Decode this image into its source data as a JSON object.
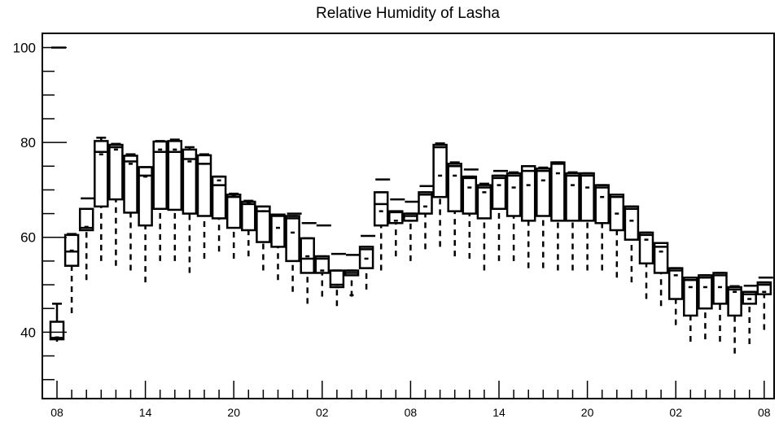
{
  "chart_data": {
    "type": "box",
    "title": "Relative Humidity of Lasha",
    "xlabel": "",
    "ylabel": "",
    "ylim": [
      26,
      103
    ],
    "y_ticks": [
      40,
      60,
      80,
      100
    ],
    "x_tick_labels": [
      "08",
      "14",
      "20",
      "02",
      "08",
      "14",
      "20",
      "02",
      "08"
    ],
    "x_tick_index": [
      0,
      6,
      12,
      18,
      24,
      30,
      36,
      42,
      48
    ],
    "grid": false,
    "boxes": [
      {
        "q1": 38.5,
        "q3": 42.2,
        "median": 38.8,
        "whisker_low": 38.0,
        "whisker_high": 46.0,
        "mean": 38.9,
        "outlier": 100.0
      },
      {
        "q1": 54.0,
        "q3": 60.5,
        "median": 57.0,
        "whisker_low": 44.0,
        "whisker_high": 60.7,
        "mean": 57.2,
        "outlier": null
      },
      {
        "q1": 61.5,
        "q3": 66.0,
        "median": 62.0,
        "whisker_low": 51.0,
        "whisker_high": 66.0,
        "mean": 62.2,
        "outlier": 68.2
      },
      {
        "q1": 66.5,
        "q3": 80.3,
        "median": 78.0,
        "whisker_low": 55.0,
        "whisker_high": 81.0,
        "mean": 77.5,
        "outlier": null
      },
      {
        "q1": 68.0,
        "q3": 79.5,
        "median": 79.0,
        "whisker_low": 54.0,
        "whisker_high": 79.7,
        "mean": 78.5,
        "outlier": null
      },
      {
        "q1": 65.2,
        "q3": 77.2,
        "median": 76.0,
        "whisker_low": 53.0,
        "whisker_high": 77.5,
        "mean": 75.5,
        "outlier": null
      },
      {
        "q1": 62.5,
        "q3": 74.8,
        "median": 73.0,
        "whisker_low": 50.5,
        "whisker_high": 74.8,
        "mean": 72.8,
        "outlier": null
      },
      {
        "q1": 66.0,
        "q3": 80.2,
        "median": 78.0,
        "whisker_low": 55.0,
        "whisker_high": 80.3,
        "mean": 78.5,
        "outlier": null
      },
      {
        "q1": 65.8,
        "q3": 80.3,
        "median": 78.0,
        "whisker_low": 55.0,
        "whisker_high": 80.6,
        "mean": 78.5,
        "outlier": null
      },
      {
        "q1": 65.0,
        "q3": 78.5,
        "median": 76.5,
        "whisker_low": 52.5,
        "whisker_high": 79.0,
        "mean": 76.0,
        "outlier": null
      },
      {
        "q1": 64.5,
        "q3": 77.3,
        "median": 75.5,
        "whisker_low": 55.5,
        "whisker_high": 77.5,
        "mean": 75.5,
        "outlier": null
      },
      {
        "q1": 64.0,
        "q3": 72.8,
        "median": 71.0,
        "whisker_low": 57.0,
        "whisker_high": 72.8,
        "mean": 72.0,
        "outlier": null
      },
      {
        "q1": 62.0,
        "q3": 69.0,
        "median": 68.5,
        "whisker_low": 55.5,
        "whisker_high": 69.2,
        "mean": 68.8,
        "outlier": null
      },
      {
        "q1": 61.5,
        "q3": 67.5,
        "median": 67.0,
        "whisker_low": 56.0,
        "whisker_high": 67.7,
        "mean": 67.2,
        "outlier": null
      },
      {
        "q1": 59.0,
        "q3": 66.5,
        "median": 65.5,
        "whisker_low": 53.0,
        "whisker_high": 66.5,
        "mean": 65.5,
        "outlier": null
      },
      {
        "q1": 58.0,
        "q3": 64.8,
        "median": 64.5,
        "whisker_low": 51.0,
        "whisker_high": 64.8,
        "mean": 62.0,
        "outlier": null
      },
      {
        "q1": 55.0,
        "q3": 64.5,
        "median": 64.0,
        "whisker_low": 48.5,
        "whisker_high": 64.5,
        "mean": 61.0,
        "outlier": 65.0
      },
      {
        "q1": 52.5,
        "q3": 59.8,
        "median": 55.5,
        "whisker_low": 46.0,
        "whisker_high": 59.8,
        "mean": 56.0,
        "outlier": 63.0
      },
      {
        "q1": 52.5,
        "q3": 56.0,
        "median": 55.5,
        "whisker_low": 47.5,
        "whisker_high": 56.0,
        "mean": 53.0,
        "outlier": 62.5
      },
      {
        "q1": 49.5,
        "q3": 53.0,
        "median": 50.0,
        "whisker_low": 45.5,
        "whisker_high": 53.0,
        "mean": 49.5,
        "outlier": 56.5
      },
      {
        "q1": 52.0,
        "q3": 53.0,
        "median": 52.5,
        "whisker_low": 47.5,
        "whisker_high": 53.0,
        "mean": 47.8,
        "outlier": 56.3
      },
      {
        "q1": 53.5,
        "q3": 58.0,
        "median": 57.5,
        "whisker_low": 49.0,
        "whisker_high": 58.0,
        "mean": 55.5,
        "outlier": 60.3
      },
      {
        "q1": 62.5,
        "q3": 69.5,
        "median": 67.0,
        "whisker_low": 53.0,
        "whisker_high": 69.5,
        "mean": 65.5,
        "outlier": 72.2
      },
      {
        "q1": 63.0,
        "q3": 65.5,
        "median": 65.3,
        "whisker_low": 56.0,
        "whisker_high": 65.5,
        "mean": 63.5,
        "outlier": 68.0
      },
      {
        "q1": 63.5,
        "q3": 65.0,
        "median": 64.5,
        "whisker_low": 55.0,
        "whisker_high": 65.0,
        "mean": 63.5,
        "outlier": 67.5
      },
      {
        "q1": 65.0,
        "q3": 69.5,
        "median": 69.0,
        "whisker_low": 57.5,
        "whisker_high": 69.5,
        "mean": 66.5,
        "outlier": 70.8
      },
      {
        "q1": 68.5,
        "q3": 79.5,
        "median": 79.0,
        "whisker_low": 58.0,
        "whisker_high": 79.8,
        "mean": 73.0,
        "outlier": null
      },
      {
        "q1": 65.5,
        "q3": 75.5,
        "median": 75.0,
        "whisker_low": 56.0,
        "whisker_high": 75.8,
        "mean": 73.0,
        "outlier": null
      },
      {
        "q1": 65.0,
        "q3": 72.8,
        "median": 72.5,
        "whisker_low": 55.5,
        "whisker_high": 72.8,
        "mean": 70.5,
        "outlier": 74.3
      },
      {
        "q1": 64.0,
        "q3": 71.0,
        "median": 70.5,
        "whisker_low": 53.0,
        "whisker_high": 71.3,
        "mean": 69.5,
        "outlier": null
      },
      {
        "q1": 66.0,
        "q3": 73.0,
        "median": 72.5,
        "whisker_low": 55.0,
        "whisker_high": 73.0,
        "mean": 71.0,
        "outlier": 74.0
      },
      {
        "q1": 64.5,
        "q3": 73.5,
        "median": 73.0,
        "whisker_low": 55.0,
        "whisker_high": 73.7,
        "mean": 70.5,
        "outlier": null
      },
      {
        "q1": 63.5,
        "q3": 75.0,
        "median": 74.0,
        "whisker_low": 53.5,
        "whisker_high": 75.0,
        "mean": 71.0,
        "outlier": null
      },
      {
        "q1": 64.5,
        "q3": 74.5,
        "median": 74.0,
        "whisker_low": 53.5,
        "whisker_high": 74.7,
        "mean": 72.0,
        "outlier": null
      },
      {
        "q1": 63.5,
        "q3": 75.8,
        "median": 75.5,
        "whisker_low": 53.0,
        "whisker_high": 75.8,
        "mean": 73.5,
        "outlier": null
      },
      {
        "q1": 63.5,
        "q3": 73.5,
        "median": 73.0,
        "whisker_low": 53.0,
        "whisker_high": 73.7,
        "mean": 71.0,
        "outlier": null
      },
      {
        "q1": 63.5,
        "q3": 73.5,
        "median": 73.0,
        "whisker_low": 53.0,
        "whisker_high": 73.5,
        "mean": 70.5,
        "outlier": null
      },
      {
        "q1": 63.0,
        "q3": 71.0,
        "median": 70.5,
        "whisker_low": 53.0,
        "whisker_high": 71.0,
        "mean": 68.5,
        "outlier": null
      },
      {
        "q1": 61.5,
        "q3": 69.0,
        "median": 68.5,
        "whisker_low": 51.5,
        "whisker_high": 69.0,
        "mean": 65.0,
        "outlier": null
      },
      {
        "q1": 59.5,
        "q3": 66.5,
        "median": 66.0,
        "whisker_low": 50.5,
        "whisker_high": 66.5,
        "mean": 63.5,
        "outlier": null
      },
      {
        "q1": 54.5,
        "q3": 61.0,
        "median": 60.5,
        "whisker_low": 47.0,
        "whisker_high": 61.0,
        "mean": 59.5,
        "outlier": null
      },
      {
        "q1": 52.5,
        "q3": 58.8,
        "median": 58.0,
        "whisker_low": 45.5,
        "whisker_high": 58.8,
        "mean": 57.0,
        "outlier": null
      },
      {
        "q1": 47.0,
        "q3": 53.5,
        "median": 53.0,
        "whisker_low": 41.5,
        "whisker_high": 53.5,
        "mean": 52.0,
        "outlier": null
      },
      {
        "q1": 43.5,
        "q3": 51.5,
        "median": 51.0,
        "whisker_low": 38.0,
        "whisker_high": 51.5,
        "mean": 49.5,
        "outlier": null
      },
      {
        "q1": 45.0,
        "q3": 52.0,
        "median": 51.5,
        "whisker_low": 38.5,
        "whisker_high": 52.0,
        "mean": 49.5,
        "outlier": null
      },
      {
        "q1": 46.0,
        "q3": 52.5,
        "median": 52.0,
        "whisker_low": 38.0,
        "whisker_high": 52.5,
        "mean": 49.5,
        "outlier": null
      },
      {
        "q1": 43.5,
        "q3": 49.5,
        "median": 49.0,
        "whisker_low": 35.5,
        "whisker_high": 49.7,
        "mean": 48.5,
        "outlier": null
      },
      {
        "q1": 46.0,
        "q3": 48.5,
        "median": 48.0,
        "whisker_low": 37.5,
        "whisker_high": 48.5,
        "mean": 47.0,
        "outlier": 49.8
      },
      {
        "q1": 48.0,
        "q3": 50.5,
        "median": 50.0,
        "whisker_low": 40.5,
        "whisker_high": 50.5,
        "mean": 48.5,
        "outlier": 51.5
      }
    ]
  }
}
